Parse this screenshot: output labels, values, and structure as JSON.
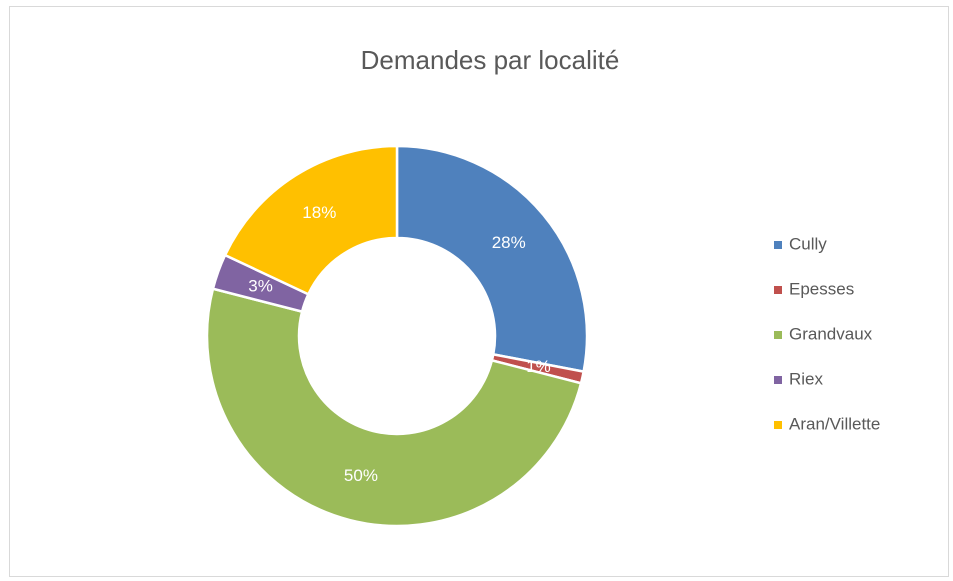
{
  "chart_data": {
    "type": "donut",
    "title": "Demandes par localité",
    "categories": [
      "Cully",
      "Epesses",
      "Grandvaux",
      "Riex",
      "Aran/Villette"
    ],
    "values": [
      28,
      1,
      50,
      3,
      18
    ],
    "value_labels": [
      "28%",
      "1%",
      "50%",
      "3%",
      "18%"
    ],
    "colors": [
      "#4f81bd",
      "#c0504d",
      "#9bbb59",
      "#8064a2",
      "#ffc000"
    ],
    "legend": "right"
  }
}
